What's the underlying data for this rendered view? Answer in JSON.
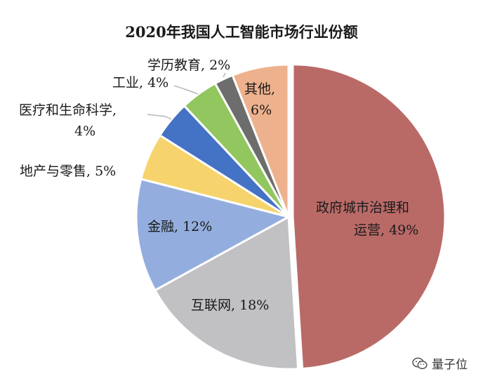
{
  "chart_data": {
    "type": "pie",
    "title": "2020年我国人工智能市场行业份额",
    "slices": [
      {
        "label": "政府城市治理和运营",
        "value": 49,
        "color": "#b96a67"
      },
      {
        "label": "互联网",
        "value": 18,
        "color": "#c1c1c4"
      },
      {
        "label": "金融",
        "value": 12,
        "color": "#93aede"
      },
      {
        "label": "地产与零售",
        "value": 5,
        "color": "#f6d36c"
      },
      {
        "label": "医疗和生命科学",
        "value": 4,
        "color": "#4472c4"
      },
      {
        "label": "工业",
        "value": 4,
        "color": "#92c65e"
      },
      {
        "label": "学历教育",
        "value": 2,
        "color": "#6d6d6d"
      },
      {
        "label": "其他",
        "value": 6,
        "color": "#eeb18d"
      }
    ],
    "labels": {
      "gov_line1": "政府城市治理和",
      "gov_line2": "运营, 49%",
      "internet": "互联网, 18%",
      "finance": "金融, 12%",
      "realestate": "地产与零售, 5%",
      "medical_line1": "医疗和生命科学,",
      "medical_line2": "4%",
      "industry": "工业, 4%",
      "education": "学历教育, 2%",
      "other_line1": "其他,",
      "other_line2": "6%"
    }
  },
  "watermark": {
    "text": "量子位",
    "icon": "wechat-icon"
  }
}
